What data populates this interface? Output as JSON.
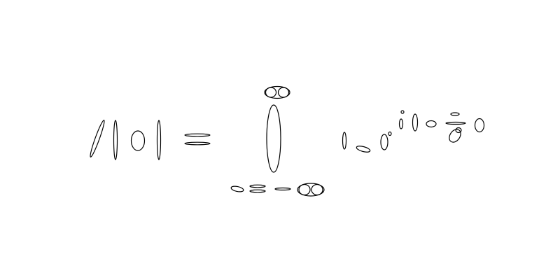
{
  "figure": {
    "background": "#ffffff",
    "stroke_color": "#000000"
  }
}
